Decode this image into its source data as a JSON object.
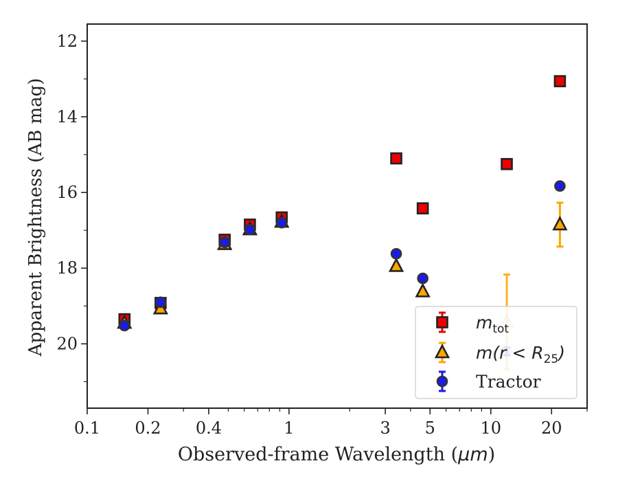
{
  "chart_data": {
    "type": "scatter",
    "xlabel_prefix": "Observed-frame Wavelength (",
    "xlabel_unit": "μm",
    "xlabel_suffix": ")",
    "ylabel": "Apparent Brightness (AB mag)",
    "x_scale": "log",
    "xlim": [
      0.1,
      30
    ],
    "ylim": [
      21.7,
      11.55
    ],
    "y_inverted": true,
    "grid": false,
    "legend_position": "lower-right",
    "x_ticks": [
      {
        "value": 0.1,
        "label": "0.1"
      },
      {
        "value": 0.2,
        "label": "0.2"
      },
      {
        "value": 0.4,
        "label": "0.4"
      },
      {
        "value": 1,
        "label": "1"
      },
      {
        "value": 3,
        "label": "3"
      },
      {
        "value": 5,
        "label": "5"
      },
      {
        "value": 10,
        "label": "10"
      },
      {
        "value": 20,
        "label": "20"
      }
    ],
    "y_ticks": [
      {
        "value": 12,
        "label": "12"
      },
      {
        "value": 14,
        "label": "14"
      },
      {
        "value": 16,
        "label": "16"
      },
      {
        "value": 18,
        "label": "18"
      },
      {
        "value": 20,
        "label": "20"
      }
    ],
    "series": [
      {
        "key": "mtot",
        "marker": "square",
        "color": "#ee0000",
        "edge_color": "#222222",
        "points": [
          {
            "x": 0.153,
            "y": 19.35,
            "err": 0.05
          },
          {
            "x": 0.231,
            "y": 18.92,
            "err": 0.04
          },
          {
            "x": 0.48,
            "y": 17.25,
            "err": 0.04
          },
          {
            "x": 0.64,
            "y": 16.85,
            "err": 0.04
          },
          {
            "x": 0.92,
            "y": 16.66,
            "err": 0.04
          },
          {
            "x": 3.4,
            "y": 15.1,
            "err": 0.02
          },
          {
            "x": 4.6,
            "y": 16.42,
            "err": 0.02
          },
          {
            "x": 12.0,
            "y": 15.25,
            "err": 0.02
          },
          {
            "x": 22.0,
            "y": 13.06,
            "err": 0.02
          }
        ]
      },
      {
        "key": "mr25",
        "marker": "triangle",
        "color": "#ffa500",
        "edge_color": "#222222",
        "points": [
          {
            "x": 0.153,
            "y": 19.45,
            "err": 0.06
          },
          {
            "x": 0.231,
            "y": 19.07,
            "err": 0.04
          },
          {
            "x": 0.48,
            "y": 17.37,
            "err": 0.03
          },
          {
            "x": 0.64,
            "y": 16.98,
            "err": 0.03
          },
          {
            "x": 0.92,
            "y": 16.78,
            "err": 0.03
          },
          {
            "x": 3.4,
            "y": 17.95,
            "err": 0.03
          },
          {
            "x": 4.6,
            "y": 18.62,
            "err": 0.05
          },
          {
            "x": 12.0,
            "y": 19.42,
            "err": 1.25,
            "faded": true
          },
          {
            "x": 22.0,
            "y": 16.85,
            "err": 0.58
          }
        ]
      },
      {
        "key": "tractor",
        "marker": "circle",
        "color": "#1a1aee",
        "edge_color": "#333333",
        "points": [
          {
            "x": 0.153,
            "y": 19.52,
            "err": 0.06
          },
          {
            "x": 0.231,
            "y": 18.9,
            "err": 0.04
          },
          {
            "x": 0.48,
            "y": 17.32,
            "err": 0.03
          },
          {
            "x": 0.64,
            "y": 16.98,
            "err": 0.03
          },
          {
            "x": 0.92,
            "y": 16.8,
            "err": 0.03
          },
          {
            "x": 3.4,
            "y": 17.62,
            "err": 0.06
          },
          {
            "x": 4.6,
            "y": 18.27,
            "err": 0.07
          },
          {
            "x": 12.0,
            "y": 20.2,
            "err": 0.1,
            "faded": true
          },
          {
            "x": 22.0,
            "y": 15.83,
            "err": 0.06
          }
        ]
      }
    ],
    "legend": [
      {
        "key": "mtot",
        "name_main": "m",
        "name_sub": "tot",
        "name_tail": ""
      },
      {
        "key": "mr25",
        "name_main": "m(r < R",
        "name_sub": "25",
        "name_tail": ")"
      },
      {
        "key": "tractor",
        "name_main": "Tractor",
        "name_sub": "",
        "name_tail": ""
      }
    ]
  }
}
